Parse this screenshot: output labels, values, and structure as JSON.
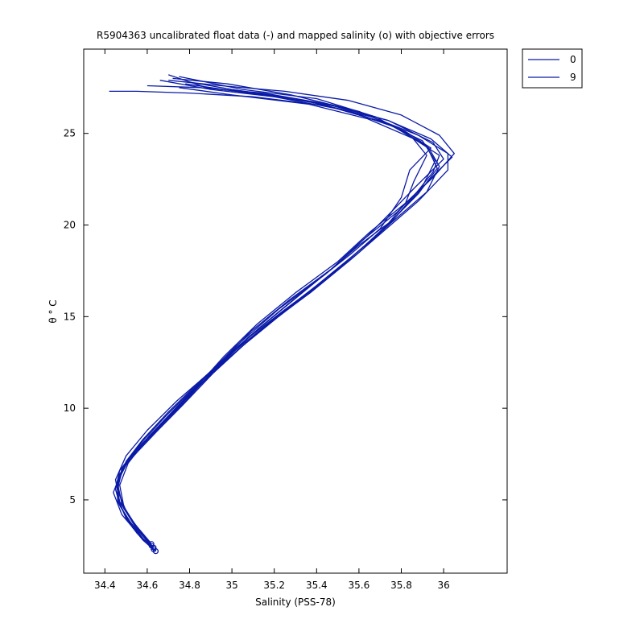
{
  "chart_data": {
    "type": "line",
    "title": "R5904363 uncalibrated float data (-) and mapped salinity (o) with objective errors",
    "xlabel": "Salinity (PSS-78)",
    "ylabel": "θ ° C",
    "xlim": [
      34.3,
      36.3
    ],
    "ylim": [
      1,
      29.6
    ],
    "x_ticks": [
      34.4,
      34.6,
      34.8,
      35.0,
      35.2,
      35.4,
      35.6,
      35.8,
      36.0
    ],
    "x_tick_labels": [
      "34.4",
      "34.6",
      "34.8",
      "35",
      "35.2",
      "35.4",
      "35.6",
      "35.8",
      "36"
    ],
    "y_ticks": [
      5,
      10,
      15,
      20,
      25
    ],
    "y_tick_labels": [
      "5",
      "10",
      "15",
      "20",
      "25"
    ],
    "grid": false,
    "legend": {
      "position": "outside-top-right",
      "entries": [
        "0",
        "9"
      ]
    },
    "line_color": "#0a1aa6",
    "series": [
      {
        "name": "0",
        "color": "#0a1aa6",
        "points": [
          [
            34.64,
            2.2
          ],
          [
            34.6,
            2.6
          ],
          [
            34.55,
            3.2
          ],
          [
            34.5,
            4.0
          ],
          [
            34.47,
            4.8
          ],
          [
            34.45,
            5.6
          ],
          [
            34.47,
            6.4
          ],
          [
            34.52,
            7.3
          ],
          [
            34.6,
            8.3
          ],
          [
            34.7,
            9.5
          ],
          [
            34.82,
            11.0
          ],
          [
            34.96,
            12.8
          ],
          [
            35.12,
            14.6
          ],
          [
            35.3,
            16.3
          ],
          [
            35.5,
            18.0
          ],
          [
            35.65,
            19.6
          ],
          [
            35.82,
            21.2
          ],
          [
            35.95,
            22.6
          ],
          [
            36.05,
            23.9
          ],
          [
            35.98,
            24.9
          ],
          [
            35.8,
            26.0
          ],
          [
            35.55,
            26.8
          ],
          [
            35.25,
            27.3
          ],
          [
            34.95,
            27.6
          ],
          [
            34.7,
            27.9
          ]
        ]
      },
      {
        "name": "9",
        "color": "#0a1aa6",
        "points": [
          [
            34.63,
            2.3
          ],
          [
            34.58,
            2.8
          ],
          [
            34.53,
            3.5
          ],
          [
            34.49,
            4.3
          ],
          [
            34.46,
            5.1
          ],
          [
            34.46,
            6.0
          ],
          [
            34.5,
            6.9
          ],
          [
            34.57,
            7.9
          ],
          [
            34.67,
            9.1
          ],
          [
            34.79,
            10.5
          ],
          [
            34.93,
            12.3
          ],
          [
            35.09,
            14.2
          ],
          [
            35.27,
            15.9
          ],
          [
            35.47,
            17.6
          ],
          [
            35.62,
            19.2
          ],
          [
            35.78,
            20.7
          ],
          [
            35.9,
            22.1
          ],
          [
            35.96,
            23.5
          ],
          [
            35.9,
            24.6
          ],
          [
            35.72,
            25.6
          ],
          [
            35.45,
            26.5
          ],
          [
            35.1,
            27.0
          ],
          [
            34.8,
            27.2
          ],
          [
            34.55,
            27.3
          ],
          [
            34.42,
            27.3
          ]
        ]
      },
      {
        "points": [
          [
            34.64,
            2.2
          ],
          [
            34.56,
            3.1
          ],
          [
            34.48,
            4.2
          ],
          [
            34.44,
            5.4
          ],
          [
            34.48,
            6.6
          ],
          [
            34.56,
            7.8
          ],
          [
            34.68,
            9.3
          ],
          [
            34.84,
            11.3
          ],
          [
            35.02,
            13.4
          ],
          [
            35.22,
            15.4
          ],
          [
            35.44,
            17.3
          ],
          [
            35.6,
            18.9
          ],
          [
            35.74,
            20.1
          ],
          [
            35.82,
            21.2
          ],
          [
            35.86,
            22.4
          ],
          [
            35.92,
            23.8
          ],
          [
            35.85,
            24.8
          ],
          [
            35.68,
            25.9
          ],
          [
            35.4,
            26.9
          ],
          [
            35.05,
            27.4
          ],
          [
            34.75,
            28.1
          ]
        ]
      },
      {
        "points": [
          [
            34.63,
            2.4
          ],
          [
            34.55,
            3.4
          ],
          [
            34.49,
            4.6
          ],
          [
            34.47,
            5.8
          ],
          [
            34.51,
            7.0
          ],
          [
            34.61,
            8.5
          ],
          [
            34.75,
            10.2
          ],
          [
            34.92,
            12.1
          ],
          [
            35.12,
            14.3
          ],
          [
            35.34,
            16.4
          ],
          [
            35.56,
            18.4
          ],
          [
            35.7,
            19.8
          ],
          [
            35.8,
            21.5
          ],
          [
            35.84,
            23.0
          ],
          [
            35.94,
            24.2
          ],
          [
            35.82,
            25.1
          ],
          [
            35.6,
            26.2
          ],
          [
            35.28,
            27.1
          ],
          [
            34.98,
            27.7
          ],
          [
            34.72,
            28.0
          ]
        ]
      },
      {
        "points": [
          [
            34.62,
            2.5
          ],
          [
            34.54,
            3.6
          ],
          [
            34.47,
            4.9
          ],
          [
            34.45,
            6.1
          ],
          [
            34.5,
            7.4
          ],
          [
            34.6,
            8.8
          ],
          [
            34.74,
            10.4
          ],
          [
            34.9,
            12.0
          ],
          [
            35.08,
            13.9
          ],
          [
            35.28,
            15.8
          ],
          [
            35.48,
            17.7
          ],
          [
            35.64,
            19.4
          ],
          [
            35.76,
            20.8
          ],
          [
            35.86,
            22.0
          ],
          [
            36.0,
            23.6
          ],
          [
            35.95,
            24.5
          ],
          [
            35.74,
            25.7
          ],
          [
            35.45,
            26.6
          ],
          [
            35.15,
            27.2
          ],
          [
            34.85,
            27.5
          ],
          [
            34.6,
            27.6
          ]
        ]
      },
      {
        "points": [
          [
            34.64,
            2.2
          ],
          [
            34.57,
            3.0
          ],
          [
            34.51,
            3.9
          ],
          [
            34.46,
            4.9
          ],
          [
            34.46,
            5.9
          ],
          [
            34.49,
            6.8
          ],
          [
            34.56,
            7.7
          ],
          [
            34.65,
            8.8
          ],
          [
            34.77,
            10.2
          ],
          [
            34.91,
            11.9
          ],
          [
            35.07,
            13.6
          ],
          [
            35.25,
            15.3
          ],
          [
            35.45,
            17.1
          ],
          [
            35.63,
            18.9
          ],
          [
            35.78,
            20.4
          ],
          [
            35.92,
            21.8
          ],
          [
            35.98,
            23.2
          ],
          [
            35.93,
            24.2
          ],
          [
            35.76,
            25.4
          ],
          [
            35.52,
            26.3
          ],
          [
            35.2,
            27.0
          ],
          [
            34.9,
            27.4
          ],
          [
            34.66,
            27.9
          ]
        ]
      },
      {
        "points": [
          [
            34.63,
            2.3
          ],
          [
            34.56,
            3.3
          ],
          [
            34.5,
            4.4
          ],
          [
            34.46,
            5.5
          ],
          [
            34.48,
            6.7
          ],
          [
            34.55,
            7.8
          ],
          [
            34.66,
            9.0
          ],
          [
            34.8,
            10.7
          ],
          [
            34.97,
            12.6
          ],
          [
            35.16,
            14.5
          ],
          [
            35.37,
            16.3
          ],
          [
            35.56,
            18.1
          ],
          [
            35.72,
            19.7
          ],
          [
            35.88,
            21.3
          ],
          [
            36.02,
            23.0
          ],
          [
            36.02,
            23.9
          ],
          [
            35.88,
            24.9
          ],
          [
            35.66,
            25.9
          ],
          [
            35.38,
            26.7
          ],
          [
            35.02,
            27.3
          ],
          [
            34.78,
            27.7
          ]
        ]
      },
      {
        "points": [
          [
            34.64,
            2.2
          ],
          [
            34.58,
            2.9
          ],
          [
            34.52,
            3.8
          ],
          [
            34.47,
            4.7
          ],
          [
            34.45,
            5.6
          ],
          [
            34.47,
            6.6
          ],
          [
            34.53,
            7.5
          ],
          [
            34.62,
            8.6
          ],
          [
            34.73,
            9.9
          ],
          [
            34.87,
            11.5
          ],
          [
            35.04,
            13.3
          ],
          [
            35.22,
            15.0
          ],
          [
            35.42,
            16.8
          ],
          [
            35.6,
            18.5
          ],
          [
            35.74,
            20.0
          ],
          [
            35.86,
            21.6
          ],
          [
            35.95,
            22.9
          ],
          [
            35.98,
            23.8
          ],
          [
            35.86,
            24.7
          ],
          [
            35.64,
            25.8
          ],
          [
            35.36,
            26.6
          ],
          [
            35.0,
            27.1
          ],
          [
            34.75,
            27.5
          ]
        ]
      },
      {
        "points": [
          [
            34.63,
            2.4
          ],
          [
            34.56,
            3.4
          ],
          [
            34.49,
            4.5
          ],
          [
            34.46,
            5.7
          ],
          [
            34.49,
            6.9
          ],
          [
            34.57,
            8.1
          ],
          [
            34.69,
            9.6
          ],
          [
            34.84,
            11.3
          ],
          [
            35.01,
            13.1
          ],
          [
            35.2,
            14.9
          ],
          [
            35.4,
            16.7
          ],
          [
            35.58,
            18.4
          ],
          [
            35.73,
            19.9
          ],
          [
            35.85,
            21.4
          ],
          [
            35.96,
            22.8
          ],
          [
            36.04,
            23.7
          ],
          [
            35.94,
            24.7
          ],
          [
            35.74,
            25.7
          ],
          [
            35.48,
            26.5
          ],
          [
            35.16,
            27.1
          ],
          [
            34.88,
            27.5
          ],
          [
            34.7,
            28.2
          ]
        ]
      },
      {
        "points": [
          [
            34.62,
            2.6
          ],
          [
            34.54,
            3.7
          ],
          [
            34.48,
            4.8
          ],
          [
            34.46,
            5.9
          ],
          [
            34.5,
            7.1
          ],
          [
            34.58,
            8.3
          ],
          [
            34.7,
            9.8
          ],
          [
            34.86,
            11.6
          ],
          [
            35.04,
            13.5
          ],
          [
            35.24,
            15.3
          ],
          [
            35.45,
            17.1
          ],
          [
            35.62,
            18.8
          ],
          [
            35.76,
            20.3
          ],
          [
            35.88,
            21.7
          ],
          [
            35.97,
            23.1
          ],
          [
            35.92,
            24.3
          ],
          [
            35.78,
            25.3
          ],
          [
            35.56,
            26.2
          ],
          [
            35.3,
            26.9
          ],
          [
            35.0,
            27.4
          ],
          [
            34.8,
            27.8
          ]
        ]
      }
    ]
  }
}
